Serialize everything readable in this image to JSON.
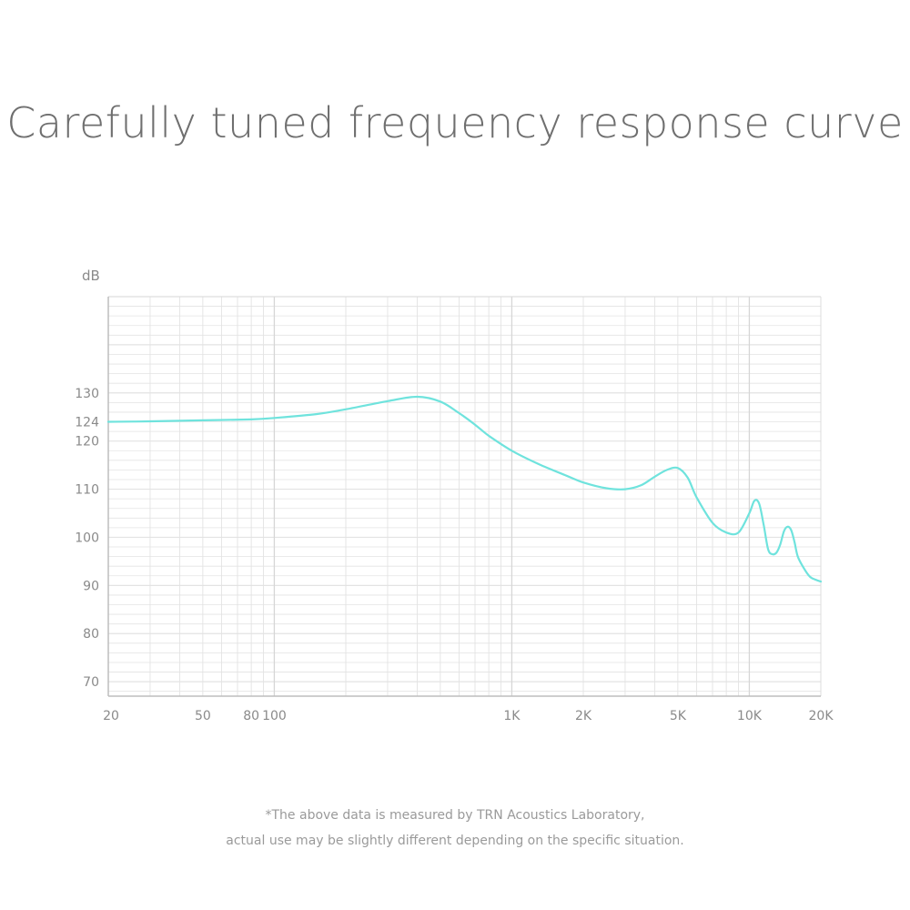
{
  "page": {
    "title": "Carefully tuned frequency response curve",
    "footnote_line1": "*The above data is measured by TRN Acoustics Laboratory,",
    "footnote_line2": "actual use may be slightly different depending on the specific situation."
  },
  "chart_data": {
    "type": "line",
    "title": "Carefully tuned frequency response curve",
    "ylabel": "dB",
    "xlabel": "",
    "x_scale": "log",
    "xlim": [
      20,
      20000
    ],
    "ylim": [
      67,
      150
    ],
    "grid": true,
    "x_ticks": [
      {
        "value": 20,
        "label": "20"
      },
      {
        "value": 50,
        "label": "50"
      },
      {
        "value": 80,
        "label": "80"
      },
      {
        "value": 100,
        "label": "100"
      },
      {
        "value": 1000,
        "label": "1K"
      },
      {
        "value": 2000,
        "label": "2K"
      },
      {
        "value": 5000,
        "label": "5K"
      },
      {
        "value": 10000,
        "label": "10K"
      },
      {
        "value": 20000,
        "label": "20K"
      }
    ],
    "y_ticks": [
      {
        "value": 70,
        "label": "70"
      },
      {
        "value": 80,
        "label": "80"
      },
      {
        "value": 90,
        "label": "90"
      },
      {
        "value": 100,
        "label": "100"
      },
      {
        "value": 110,
        "label": "110"
      },
      {
        "value": 120,
        "label": "120"
      },
      {
        "value": 124,
        "label": "124"
      },
      {
        "value": 130,
        "label": "130"
      }
    ],
    "line_color": "#6fe3dd",
    "grid_color": "#e3e3e3",
    "axis_color": "#bdbdbd",
    "series": [
      {
        "x": [
          20,
          30,
          50,
          80,
          100,
          150,
          200,
          300,
          400,
          500,
          600,
          700,
          800,
          1000,
          1300,
          1700,
          2000,
          2500,
          3000,
          3500,
          4000,
          4500,
          5000,
          5500,
          6000,
          7000,
          8000,
          9000,
          10000,
          10500,
          11000,
          11500,
          12000,
          12500,
          13000,
          13500,
          14000,
          14500,
          15000,
          15500,
          16000,
          17000,
          18000,
          19000,
          20000
        ],
        "y": [
          124.0,
          124.1,
          124.3,
          124.5,
          124.8,
          125.6,
          126.6,
          128.3,
          129.2,
          128.2,
          125.8,
          123.4,
          121.1,
          118.0,
          115.2,
          112.8,
          111.4,
          110.2,
          110.0,
          110.8,
          112.6,
          114.0,
          114.4,
          112.4,
          108.3,
          103.0,
          101.0,
          101.0,
          105.0,
          107.6,
          107.0,
          102.5,
          97.5,
          96.5,
          96.8,
          98.5,
          101.3,
          102.2,
          101.5,
          99.0,
          96.0,
          93.5,
          91.8,
          91.2,
          90.8
        ]
      }
    ]
  }
}
